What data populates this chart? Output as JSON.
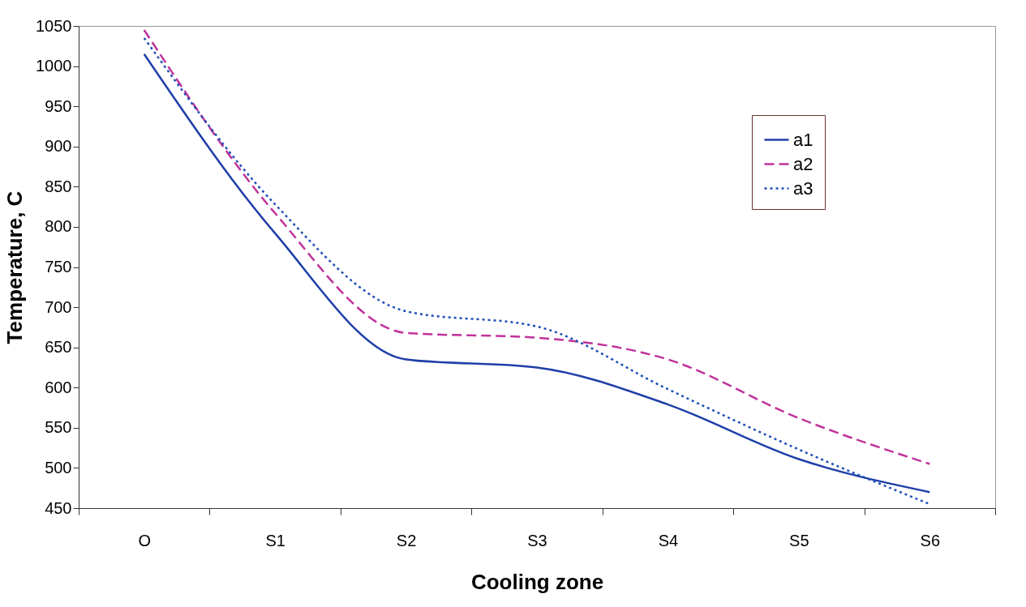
{
  "chart_data": {
    "type": "line",
    "xlabel": "Cooling zone",
    "ylabel": "Temperature, C",
    "categories": [
      "O",
      "S1",
      "S2",
      "S3",
      "S4",
      "S5",
      "S6"
    ],
    "series": [
      {
        "name": "a1",
        "color": "#1f3fa8",
        "line_style": "solid",
        "values": [
          1015,
          792,
          635,
          625,
          579,
          511,
          470
        ]
      },
      {
        "name": "a2",
        "color": "#c0329a",
        "line_style": "dashed",
        "values": [
          1045,
          817,
          668,
          662,
          635,
          562,
          505
        ]
      },
      {
        "name": "a3",
        "color": "#1f4fb8",
        "line_style": "dotted",
        "values": [
          1035,
          828,
          695,
          676,
          598,
          523,
          455
        ]
      }
    ],
    "ylim": [
      450,
      1050
    ],
    "yticks": [
      450,
      500,
      550,
      600,
      650,
      700,
      750,
      800,
      850,
      900,
      950,
      1000,
      1050
    ],
    "grid": false,
    "legend": "top right",
    "marker": "none"
  }
}
